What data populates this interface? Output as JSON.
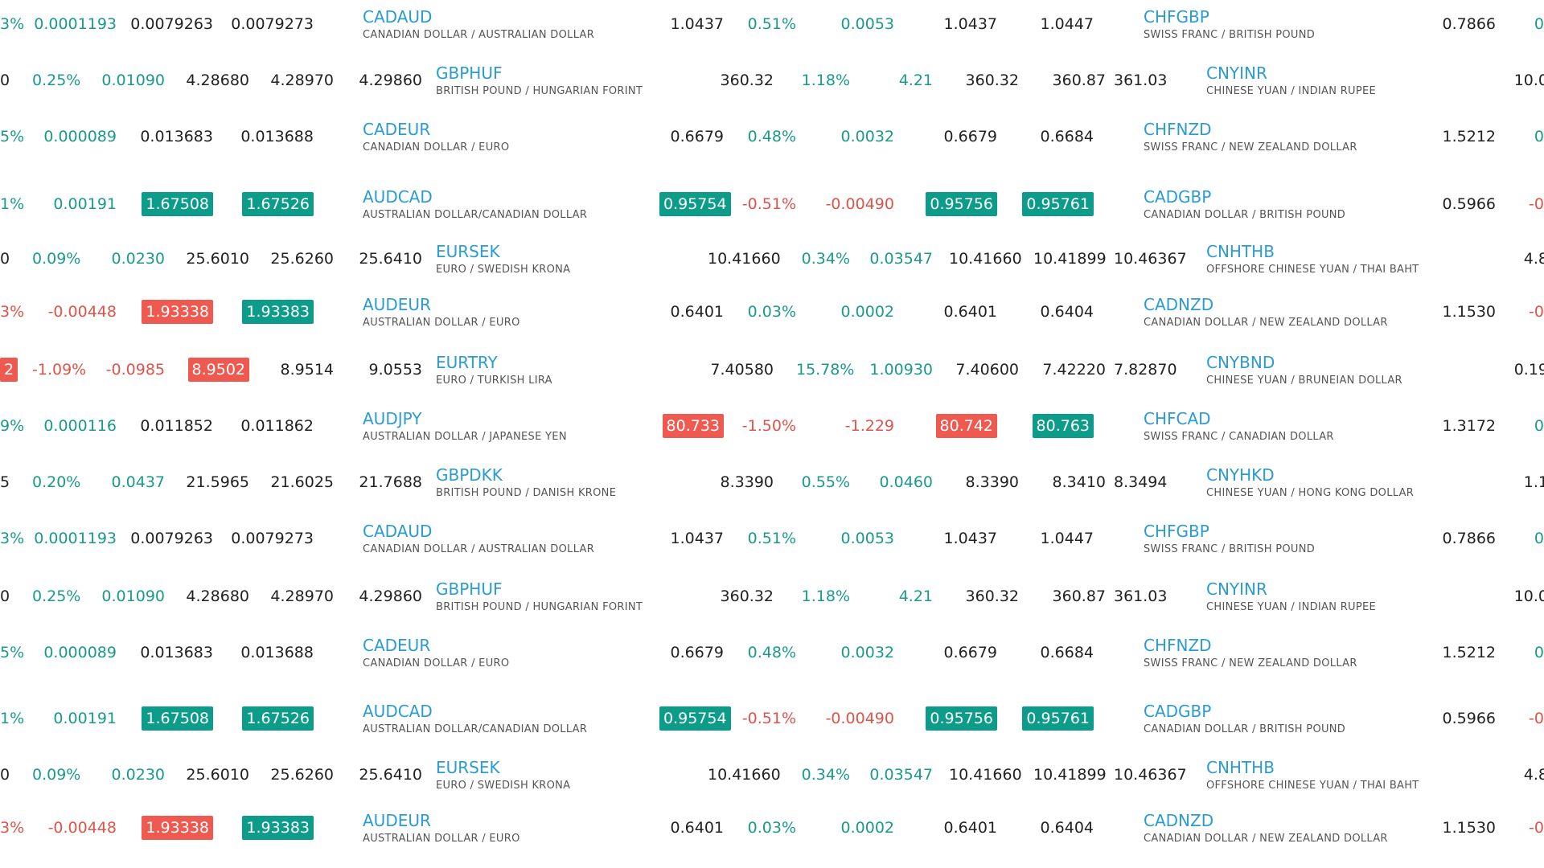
{
  "colors": {
    "up": "#1a9a8b",
    "down": "#e0534a",
    "up_bg": "#0d9c8a",
    "down_bg": "#ee5a50",
    "symbol": "#2b9bd3"
  },
  "rows": [
    {
      "c0": "3%",
      "c0s": "pos",
      "c1": "0.0001193",
      "c1s": "pos",
      "c2": "0.0079263",
      "c2s": "neutral",
      "c3": "0.0079273",
      "c3s": "neutral",
      "s1": "CADAUD",
      "s1d": "CANADIAN DOLLAR / AUSTRALIAN DOLLAR",
      "s1x": 0,
      "m1": "",
      "m1s": "neutral",
      "m2": "1.0437",
      "m2s": "neutral",
      "m3": "0.51%",
      "m3s": "pos",
      "m4": "0.0053",
      "m4s": "pos",
      "m5": "1.0437",
      "m5s": "neutral",
      "m6": "1.0447",
      "m6s": "neutral",
      "s2": "CHFGBP",
      "s2d": "SWISS FRANC / BRITISH POUND",
      "s2x": 0,
      "r1": "0.7866",
      "r1s": "neutral",
      "r2": "0",
      "r2s": "pos"
    },
    {
      "c0": "0",
      "c0s": "neutral",
      "c1": "0.25%",
      "c1s": "pos",
      "c2": "0.01090",
      "c2s": "pos",
      "c3": "4.28680",
      "c3s": "neutral",
      "c4": "4.28970",
      "c4s": "neutral",
      "c5": "4.29860",
      "c5s": "neutral",
      "s1": "GBPHUF",
      "s1d": "BRITISH POUND / HUNGARIAN FORINT",
      "s1x": 1,
      "m2": "360.32",
      "m2s": "neutral",
      "m3": "1.18%",
      "m3s": "pos",
      "m4": "4.21",
      "m4s": "pos",
      "m5": "360.32",
      "m5s": "neutral",
      "m6": "360.87",
      "m6s": "neutral",
      "m7": "361.03",
      "m7s": "neutral",
      "s2": "CNYINR",
      "s2d": "CHINESE YUAN / INDIAN RUPEE",
      "s2x": 1,
      "r2": "10.0",
      "r2s": "neutral"
    },
    {
      "c0": "5%",
      "c0s": "pos",
      "c1": "0.000089",
      "c1s": "pos",
      "c2": "0.013683",
      "c2s": "neutral",
      "c3": "0.013688",
      "c3s": "neutral",
      "s1": "CADEUR",
      "s1d": "CANADIAN DOLLAR / EURO",
      "s1x": 0,
      "m2": "0.6679",
      "m2s": "neutral",
      "m3": "0.48%",
      "m3s": "pos",
      "m4": "0.0032",
      "m4s": "pos",
      "m5": "0.6679",
      "m5s": "neutral",
      "m6": "0.6684",
      "m6s": "neutral",
      "s2": "CHFNZD",
      "s2d": "SWISS FRANC / NEW ZEALAND DOLLAR",
      "s2x": 0,
      "r1": "1.5212",
      "r1s": "neutral",
      "r2": "0",
      "r2s": "pos"
    },
    {
      "c0": "1%",
      "c0s": "pos",
      "c1": "0.00191",
      "c1s": "pos",
      "c2": "1.67508",
      "c2s": "hl-up",
      "c3": "1.67526",
      "c3s": "hl-up",
      "s1": "AUDCAD",
      "s1d": "AUSTRALIAN DOLLAR/CANADIAN DOLLAR",
      "s1x": 0,
      "m2": "0.95754",
      "m2s": "hl-up",
      "m3": "-0.51%",
      "m3s": "neg",
      "m4": "-0.00490",
      "m4s": "neg",
      "m5": "0.95756",
      "m5s": "hl-up",
      "m6": "0.95761",
      "m6s": "hl-up",
      "s2": "CADGBP",
      "s2d": "CANADIAN DOLLAR / BRITISH POUND",
      "s2x": 0,
      "r1": "0.5966",
      "r1s": "neutral",
      "r2": "-0",
      "r2s": "neg"
    },
    {
      "c0": "0",
      "c0s": "neutral",
      "c1": "0.09%",
      "c1s": "pos",
      "c2": "0.0230",
      "c2s": "pos",
      "c3": "25.6010",
      "c3s": "neutral",
      "c4": "25.6260",
      "c4s": "neutral",
      "c5": "25.6410",
      "c5s": "neutral",
      "s1": "EURSEK",
      "s1d": "EURO / SWEDISH KRONA",
      "s1x": 1,
      "m2": "10.41660",
      "m2s": "neutral",
      "m3": "0.34%",
      "m3s": "pos",
      "m4": "0.03547",
      "m4s": "pos",
      "m5": "10.41660",
      "m5s": "neutral",
      "m6": "10.41899",
      "m6s": "neutral",
      "m7": "10.46367",
      "m7s": "neutral",
      "s2": "CNHTHB",
      "s2d": "OFFSHORE CHINESE YUAN / THAI BAHT",
      "s2x": 1,
      "r2": "4.8",
      "r2s": "neutral"
    },
    {
      "c0": "3%",
      "c0s": "neg",
      "c1": "-0.00448",
      "c1s": "neg",
      "c2": "1.93338",
      "c2s": "hl-down",
      "c3": "1.93383",
      "c3s": "hl-up",
      "s1": "AUDEUR",
      "s1d": "AUSTRALIAN DOLLAR / EURO",
      "s1x": 0,
      "m2": "0.6401",
      "m2s": "neutral",
      "m3": "0.03%",
      "m3s": "pos",
      "m4": "0.0002",
      "m4s": "pos",
      "m5": "0.6401",
      "m5s": "neutral",
      "m6": "0.6404",
      "m6s": "neutral",
      "s2": "CADNZD",
      "s2d": "CANADIAN DOLLAR / NEW ZEALAND DOLLAR",
      "s2x": 0,
      "r1": "1.1530",
      "r1s": "neutral",
      "r2": "-0",
      "r2s": "neg"
    },
    {
      "c0": "2",
      "c0s": "hl-down",
      "c1": "-1.09%",
      "c1s": "neg",
      "c2": "-0.0985",
      "c2s": "neg",
      "c3": "8.9502",
      "c3s": "hl-down",
      "c4": "8.9514",
      "c4s": "neutral",
      "c5": "9.0553",
      "c5s": "neutral",
      "s1": "EURTRY",
      "s1d": "EURO / TURKISH LIRA",
      "s1x": 1,
      "m2": "7.40580",
      "m2s": "neutral",
      "m3": "15.78%",
      "m3s": "pos",
      "m4": "1.00930",
      "m4s": "pos",
      "m5": "7.40600",
      "m5s": "neutral",
      "m6": "7.42220",
      "m6s": "neutral",
      "m7": "7.82870",
      "m7s": "neutral",
      "s2": "CNYBND",
      "s2d": "CHINESE YUAN / BRUNEIAN DOLLAR",
      "s2x": 1,
      "r2": "0.19",
      "r2s": "neutral"
    },
    {
      "c0": "9%",
      "c0s": "pos",
      "c1": "0.000116",
      "c1s": "pos",
      "c2": "0.011852",
      "c2s": "neutral",
      "c3": "0.011862",
      "c3s": "neutral",
      "s1": "AUDJPY",
      "s1d": "AUSTRALIAN DOLLAR / JAPANESE YEN",
      "s1x": 0,
      "m2": "80.733",
      "m2s": "hl-down",
      "m3": "-1.50%",
      "m3s": "neg",
      "m4": "-1.229",
      "m4s": "neg",
      "m5": "80.742",
      "m5s": "hl-down",
      "m6": "80.763",
      "m6s": "hl-up",
      "s2": "CHFCAD",
      "s2d": "SWISS FRANC / CANADIAN DOLLAR",
      "s2x": 0,
      "r1": "1.3172",
      "r1s": "neutral",
      "r2": "0",
      "r2s": "pos"
    },
    {
      "c0": "5",
      "c0s": "neutral",
      "c1": "0.20%",
      "c1s": "pos",
      "c2": "0.0437",
      "c2s": "pos",
      "c3": "21.5965",
      "c3s": "neutral",
      "c4": "21.6025",
      "c4s": "neutral",
      "c5": "21.7688",
      "c5s": "neutral",
      "s1": "GBPDKK",
      "s1d": "BRITISH POUND / DANISH KRONE",
      "s1x": 1,
      "m2": "8.3390",
      "m2s": "neutral",
      "m3": "0.55%",
      "m3s": "pos",
      "m4": "0.0460",
      "m4s": "pos",
      "m5": "8.3390",
      "m5s": "neutral",
      "m6": "8.3410",
      "m6s": "neutral",
      "m7": "8.3494",
      "m7s": "neutral",
      "s2": "CNYHKD",
      "s2d": "CHINESE YUAN / HONG KONG DOLLAR",
      "s2x": 1,
      "r2": "1.1",
      "r2s": "neutral"
    },
    {
      "c0": "3%",
      "c0s": "pos",
      "c1": "0.0001193",
      "c1s": "pos",
      "c2": "0.0079263",
      "c2s": "neutral",
      "c3": "0.0079273",
      "c3s": "neutral",
      "s1": "CADAUD",
      "s1d": "CANADIAN DOLLAR / AUSTRALIAN DOLLAR",
      "s1x": 0,
      "m2": "1.0437",
      "m2s": "neutral",
      "m3": "0.51%",
      "m3s": "pos",
      "m4": "0.0053",
      "m4s": "pos",
      "m5": "1.0437",
      "m5s": "neutral",
      "m6": "1.0447",
      "m6s": "neutral",
      "s2": "CHFGBP",
      "s2d": "SWISS FRANC / BRITISH POUND",
      "s2x": 0,
      "r1": "0.7866",
      "r1s": "neutral",
      "r2": "0",
      "r2s": "pos"
    },
    {
      "c0": "0",
      "c0s": "neutral",
      "c1": "0.25%",
      "c1s": "pos",
      "c2": "0.01090",
      "c2s": "pos",
      "c3": "4.28680",
      "c3s": "neutral",
      "c4": "4.28970",
      "c4s": "neutral",
      "c5": "4.29860",
      "c5s": "neutral",
      "s1": "GBPHUF",
      "s1d": "BRITISH POUND / HUNGARIAN FORINT",
      "s1x": 1,
      "m2": "360.32",
      "m2s": "neutral",
      "m3": "1.18%",
      "m3s": "pos",
      "m4": "4.21",
      "m4s": "pos",
      "m5": "360.32",
      "m5s": "neutral",
      "m6": "360.87",
      "m6s": "neutral",
      "m7": "361.03",
      "m7s": "neutral",
      "s2": "CNYINR",
      "s2d": "CHINESE YUAN / INDIAN RUPEE",
      "s2x": 1,
      "r2": "10.0",
      "r2s": "neutral"
    },
    {
      "c0": "5%",
      "c0s": "pos",
      "c1": "0.000089",
      "c1s": "pos",
      "c2": "0.013683",
      "c2s": "neutral",
      "c3": "0.013688",
      "c3s": "neutral",
      "s1": "CADEUR",
      "s1d": "CANADIAN DOLLAR / EURO",
      "s1x": 0,
      "m2": "0.6679",
      "m2s": "neutral",
      "m3": "0.48%",
      "m3s": "pos",
      "m4": "0.0032",
      "m4s": "pos",
      "m5": "0.6679",
      "m5s": "neutral",
      "m6": "0.6684",
      "m6s": "neutral",
      "s2": "CHFNZD",
      "s2d": "SWISS FRANC / NEW ZEALAND DOLLAR",
      "s2x": 0,
      "r1": "1.5212",
      "r1s": "neutral",
      "r2": "0",
      "r2s": "pos"
    },
    {
      "c0": "1%",
      "c0s": "pos",
      "c1": "0.00191",
      "c1s": "pos",
      "c2": "1.67508",
      "c2s": "hl-up",
      "c3": "1.67526",
      "c3s": "hl-up",
      "s1": "AUDCAD",
      "s1d": "AUSTRALIAN DOLLAR/CANADIAN DOLLAR",
      "s1x": 0,
      "m2": "0.95754",
      "m2s": "hl-up",
      "m3": "-0.51%",
      "m3s": "neg",
      "m4": "-0.00490",
      "m4s": "neg",
      "m5": "0.95756",
      "m5s": "hl-up",
      "m6": "0.95761",
      "m6s": "hl-up",
      "s2": "CADGBP",
      "s2d": "CANADIAN DOLLAR / BRITISH POUND",
      "s2x": 0,
      "r1": "0.5966",
      "r1s": "neutral",
      "r2": "-0",
      "r2s": "neg"
    },
    {
      "c0": "0",
      "c0s": "neutral",
      "c1": "0.09%",
      "c1s": "pos",
      "c2": "0.0230",
      "c2s": "pos",
      "c3": "25.6010",
      "c3s": "neutral",
      "c4": "25.6260",
      "c4s": "neutral",
      "c5": "25.6410",
      "c5s": "neutral",
      "s1": "EURSEK",
      "s1d": "EURO / SWEDISH KRONA",
      "s1x": 1,
      "m2": "10.41660",
      "m2s": "neutral",
      "m3": "0.34%",
      "m3s": "pos",
      "m4": "0.03547",
      "m4s": "pos",
      "m5": "10.41660",
      "m5s": "neutral",
      "m6": "10.41899",
      "m6s": "neutral",
      "m7": "10.46367",
      "m7s": "neutral",
      "s2": "CNHTHB",
      "s2d": "OFFSHORE CHINESE YUAN / THAI BAHT",
      "s2x": 1,
      "r2": "4.8",
      "r2s": "neutral"
    },
    {
      "c0": "3%",
      "c0s": "neg",
      "c1": "-0.00448",
      "c1s": "neg",
      "c2": "1.93338",
      "c2s": "hl-down",
      "c3": "1.93383",
      "c3s": "hl-up",
      "s1": "AUDEUR",
      "s1d": "AUSTRALIAN DOLLAR / EURO",
      "s1x": 0,
      "m2": "0.6401",
      "m2s": "neutral",
      "m3": "0.03%",
      "m3s": "pos",
      "m4": "0.0002",
      "m4s": "pos",
      "m5": "0.6401",
      "m5s": "neutral",
      "m6": "0.6404",
      "m6s": "neutral",
      "s2": "CADNZD",
      "s2d": "CANADIAN DOLLAR / NEW ZEALAND DOLLAR",
      "s2x": 0,
      "r1": "1.1530",
      "r1s": "neutral",
      "r2": "-0",
      "r2s": "neg"
    }
  ]
}
